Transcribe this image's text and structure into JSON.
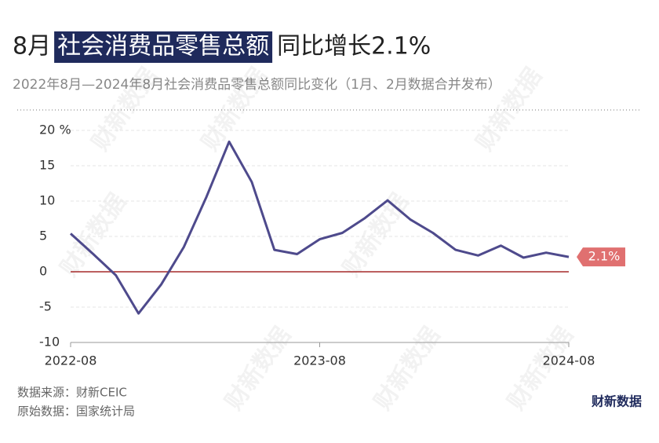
{
  "chart_data": {
    "type": "line",
    "title_parts": [
      "8月",
      "社会消费品零售总额",
      "同比增长2.1%"
    ],
    "subtitle": "2022年8月—2024年8月社会消费品零售总额同比变化（1月、2月数据合并发布）",
    "categories": [
      "2022-08",
      null,
      null,
      null,
      null,
      null,
      null,
      null,
      null,
      null,
      null,
      "2023-08",
      null,
      null,
      null,
      null,
      null,
      null,
      null,
      null,
      null,
      null,
      "2024-08"
    ],
    "series": [
      {
        "color": "#4e4a8c",
        "values": [
          5.4,
          2.5,
          -0.5,
          -5.9,
          -1.8,
          3.5,
          10.6,
          18.4,
          12.7,
          3.1,
          2.5,
          4.6,
          5.5,
          7.6,
          10.1,
          7.4,
          5.5,
          3.1,
          2.3,
          3.7,
          2.0,
          2.7,
          2.1
        ],
        "value_labels": {
          "22": "2.1%"
        }
      }
    ],
    "label_color": "#e07070",
    "ylim": [
      -10,
      20
    ],
    "yticks": [
      -10,
      -5,
      0,
      5,
      10,
      15,
      {
        "value": 20,
        "label": "20 %"
      }
    ],
    "grid": true,
    "zero_line_color": "#a52a2a",
    "source": "数据来源：财新CEIC",
    "raw_source": "原始数据：国家统计局",
    "logo": "财新数据",
    "highlight_color": "#1f2a5c"
  }
}
